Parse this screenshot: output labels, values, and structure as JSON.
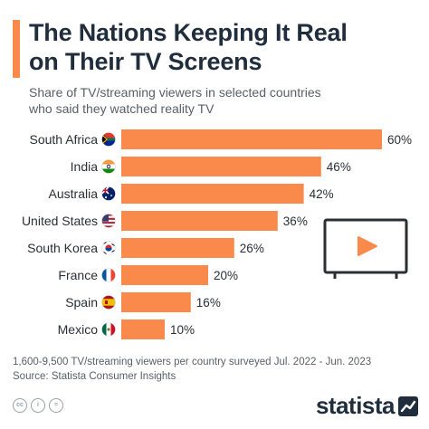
{
  "header": {
    "title_line1": "The Nations Keeping It Real",
    "title_line2": "on Their TV Screens",
    "subtitle_line1": "Share of TV/streaming viewers in selected countries",
    "subtitle_line2": "who said they watched reality TV"
  },
  "footer": {
    "note": "1,600-9,500 TV/streaming viewers per country surveyed Jul. 2022 - Jun. 2023",
    "source": "Source: Statista Consumer Insights",
    "brand": "statista"
  },
  "colors": {
    "accent": "#f98a4b",
    "bar": "#f98a4b",
    "title": "#1f2d3d"
  },
  "icons": [
    "tv-play-icon",
    "cc-icon",
    "by-icon",
    "equals-icon",
    "statista-logo-icon"
  ],
  "chart_data": {
    "type": "bar",
    "orientation": "horizontal",
    "title": "The Nations Keeping It Real on Their TV Screens",
    "subtitle": "Share of TV/streaming viewers in selected countries who said they watched reality TV",
    "categories": [
      "South Africa",
      "India",
      "Australia",
      "United States",
      "South Korea",
      "France",
      "Spain",
      "Mexico"
    ],
    "values": [
      60,
      46,
      42,
      36,
      26,
      20,
      16,
      10
    ],
    "value_labels": [
      "60%",
      "46%",
      "42%",
      "36%",
      "26%",
      "20%",
      "16%",
      "10%"
    ],
    "unit": "%",
    "xlim": [
      0,
      60
    ],
    "grid": false,
    "legend": "none"
  }
}
